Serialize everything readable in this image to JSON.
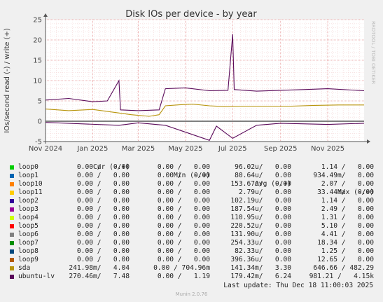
{
  "title": "Disk IOs per device - by year",
  "watermark": "RRDTOOL / TOBI OETIKER",
  "footer": "Munin 2.0.76",
  "last_update": "Last update: Thu Dec 18 11:00:03 2025",
  "legend_header": {
    "cur": "Cur (-/+)",
    "min": "Min (-/+)",
    "avg": "Avg (-/+)",
    "max": "Max (-/+)"
  },
  "colors": {
    "background": "#f0f0f0",
    "plot_background": "#ffffff",
    "grid": "#e9a0a0",
    "sda": "#b8940c",
    "ubuntu_lv": "#5a0a5a"
  },
  "chart_data": {
    "type": "line",
    "title": "Disk IOs per device - by year",
    "ylabel": "IOs/second read (-) / write (+)",
    "ylim": [
      -5,
      25
    ],
    "yticks": [
      -5,
      0,
      5,
      10,
      15,
      20,
      25
    ],
    "x_start": "2024-11-01",
    "x_end": "2025-12-18",
    "xticks": [
      "Nov 2024",
      "Jan 2025",
      "Mar 2025",
      "May 2025",
      "Jul 2025",
      "Sep 2025",
      "Nov 2025"
    ],
    "grid": true,
    "series": [
      {
        "name": "sda",
        "color": "#b8940c",
        "write_points": [
          [
            "2024-11-01",
            3.0
          ],
          [
            "2024-12-01",
            2.6
          ],
          [
            "2025-01-01",
            2.9
          ],
          [
            "2025-02-01",
            2.1
          ],
          [
            "2025-02-20",
            1.6
          ],
          [
            "2025-03-15",
            1.2
          ],
          [
            "2025-03-28",
            1.6
          ],
          [
            "2025-04-05",
            3.8
          ],
          [
            "2025-04-20",
            4.0
          ],
          [
            "2025-05-10",
            4.2
          ],
          [
            "2025-06-01",
            3.8
          ],
          [
            "2025-06-20",
            3.6
          ],
          [
            "2025-07-15",
            3.7
          ],
          [
            "2025-08-15",
            3.7
          ],
          [
            "2025-09-15",
            3.7
          ],
          [
            "2025-10-15",
            3.9
          ],
          [
            "2025-11-15",
            4.0
          ],
          [
            "2025-12-18",
            4.0
          ]
        ],
        "read_points": [
          [
            "2024-11-01",
            0.0
          ],
          [
            "2025-12-18",
            0.0
          ]
        ]
      },
      {
        "name": "ubuntu-lv",
        "color": "#5a0a5a",
        "write_points": [
          [
            "2024-11-01",
            5.2
          ],
          [
            "2024-12-01",
            5.6
          ],
          [
            "2025-01-01",
            4.8
          ],
          [
            "2025-01-20",
            5.0
          ],
          [
            "2025-02-04",
            10.0
          ],
          [
            "2025-02-06",
            2.8
          ],
          [
            "2025-03-01",
            2.6
          ],
          [
            "2025-03-28",
            2.8
          ],
          [
            "2025-04-05",
            8.0
          ],
          [
            "2025-05-01",
            8.2
          ],
          [
            "2025-06-01",
            7.5
          ],
          [
            "2025-06-25",
            7.6
          ],
          [
            "2025-07-01",
            21.4
          ],
          [
            "2025-07-03",
            7.8
          ],
          [
            "2025-08-01",
            7.4
          ],
          [
            "2025-09-01",
            7.6
          ],
          [
            "2025-10-01",
            7.8
          ],
          [
            "2025-11-01",
            8.0
          ],
          [
            "2025-12-18",
            7.5
          ]
        ],
        "read_points": [
          [
            "2024-11-01",
            -0.3
          ],
          [
            "2025-02-04",
            -1.0
          ],
          [
            "2025-03-01",
            -0.4
          ],
          [
            "2025-04-05",
            -1.0
          ],
          [
            "2025-06-01",
            -4.7
          ],
          [
            "2025-06-10",
            -1.2
          ],
          [
            "2025-07-01",
            -4.2
          ],
          [
            "2025-08-01",
            -1.0
          ],
          [
            "2025-09-01",
            -0.5
          ],
          [
            "2025-11-01",
            -0.8
          ],
          [
            "2025-12-18",
            -0.5
          ]
        ]
      }
    ]
  },
  "legend": [
    {
      "name": "loop0",
      "color": "#00cc00",
      "cur": "0.00 /   0.00",
      "min": "0.00 /   0.00",
      "avg": "96.02u/   0.00",
      "max": "1.14 /   0.00"
    },
    {
      "name": "loop1",
      "color": "#0066b3",
      "cur": "0.00 /   0.00",
      "min": "0.00 /   0.00",
      "avg": "80.64u/   0.00",
      "max": "934.49m/   0.00"
    },
    {
      "name": "loop10",
      "color": "#ff8000",
      "cur": "0.00 /   0.00",
      "min": "0.00 /   0.00",
      "avg": "153.67u/   0.00",
      "max": "2.07 /   0.00"
    },
    {
      "name": "loop11",
      "color": "#ffcc00",
      "cur": "0.00 /   0.00",
      "min": "0.00 /   0.00",
      "avg": "2.79u/   0.00",
      "max": "33.44m/   0.00"
    },
    {
      "name": "loop2",
      "color": "#330099",
      "cur": "0.00 /   0.00",
      "min": "0.00 /   0.00",
      "avg": "102.19u/   0.00",
      "max": "1.14 /   0.00"
    },
    {
      "name": "loop3",
      "color": "#990099",
      "cur": "0.00 /   0.00",
      "min": "0.00 /   0.00",
      "avg": "187.54u/   0.00",
      "max": "2.49 /   0.00"
    },
    {
      "name": "loop4",
      "color": "#ccff00",
      "cur": "0.00 /   0.00",
      "min": "0.00 /   0.00",
      "avg": "110.95u/   0.00",
      "max": "1.31 /   0.00"
    },
    {
      "name": "loop5",
      "color": "#ff0000",
      "cur": "0.00 /   0.00",
      "min": "0.00 /   0.00",
      "avg": "220.52u/   0.00",
      "max": "5.10 /   0.00"
    },
    {
      "name": "loop6",
      "color": "#808080",
      "cur": "0.00 /   0.00",
      "min": "0.00 /   0.00",
      "avg": "131.90u/   0.00",
      "max": "4.41 /   0.00"
    },
    {
      "name": "loop7",
      "color": "#008f00",
      "cur": "0.00 /   0.00",
      "min": "0.00 /   0.00",
      "avg": "254.33u/   0.00",
      "max": "18.34 /   0.00"
    },
    {
      "name": "loop8",
      "color": "#00487d",
      "cur": "0.00 /   0.00",
      "min": "0.00 /   0.00",
      "avg": "82.33u/   0.00",
      "max": "1.25 /   0.00"
    },
    {
      "name": "loop9",
      "color": "#b35a00",
      "cur": "0.00 /   0.00",
      "min": "0.00 /   0.00",
      "avg": "396.36u/   0.00",
      "max": "12.65 /   0.00"
    },
    {
      "name": "sda",
      "color": "#b8940c",
      "cur": "241.98m/   4.04",
      "min": "0.00 / 704.96m",
      "avg": "141.34m/   3.30",
      "max": "646.66 / 482.29"
    },
    {
      "name": "ubuntu-lv",
      "color": "#5a0a5a",
      "cur": "270.46m/   7.48",
      "min": "0.00 /   1.19",
      "avg": "179.42m/   6.24",
      "max": "981.21 /   4.15k"
    }
  ]
}
